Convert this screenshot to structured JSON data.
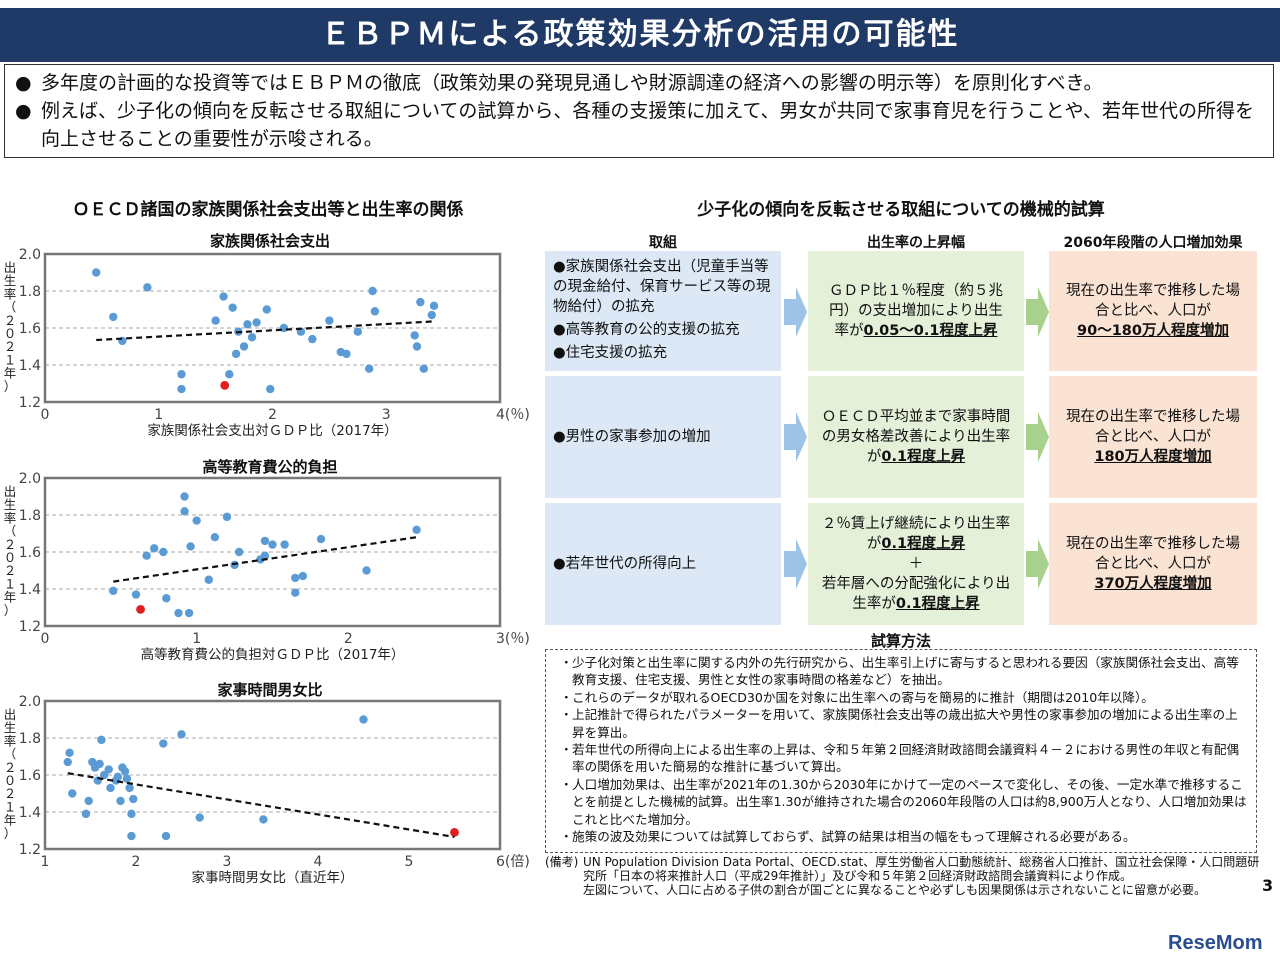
{
  "title": "ＥＢＰＭによる政策効果分析の活用の可能性",
  "summary": [
    "多年度の計画的な投資等ではＥＢＰＭの徹底（政策効果の発現見通しや財源調達の経済への影響の明示等）を原則化すべき。",
    "例えば、少子化の傾向を反転させる取組についての試算から、各種の支援策に加えて、男女が共同で家事育児を行うことや、若年世代の所得を向上させることの重要性が示唆される。"
  ],
  "left": {
    "section_title": "ＯＥＣＤ諸国の家族関係社会支出等と出生率の関係",
    "ylabel": "出生率（２０２１年）",
    "charts": [
      {
        "title": "家族関係社会支出",
        "xlabel": "家族関係社会支出対ＧＤＰ比（2017年）",
        "x_min": 0,
        "x_max": 4,
        "y_min": 1.2,
        "y_max": 2.0,
        "x_ticks": [
          "0",
          "1",
          "2",
          "3",
          "4(％)"
        ],
        "y_ticks": [
          "1.2",
          "1.4",
          "1.6",
          "1.8",
          "2.0"
        ],
        "trend": [
          [
            0.45,
            1.535
          ],
          [
            3.4,
            1.635
          ]
        ],
        "points": [
          [
            0.45,
            1.9
          ],
          [
            0.6,
            1.66
          ],
          [
            0.68,
            1.53
          ],
          [
            0.9,
            1.82
          ],
          [
            1.2,
            1.35
          ],
          [
            1.2,
            1.27
          ],
          [
            1.5,
            1.64
          ],
          [
            1.57,
            1.77
          ],
          [
            1.65,
            1.71
          ],
          [
            1.62,
            1.35
          ],
          [
            1.68,
            1.46
          ],
          [
            1.7,
            1.58
          ],
          [
            1.75,
            1.5
          ],
          [
            1.78,
            1.62
          ],
          [
            1.82,
            1.55
          ],
          [
            1.86,
            1.63
          ],
          [
            1.95,
            1.7
          ],
          [
            1.98,
            1.27
          ],
          [
            2.1,
            1.6
          ],
          [
            2.25,
            1.58
          ],
          [
            2.35,
            1.54
          ],
          [
            2.5,
            1.64
          ],
          [
            2.6,
            1.47
          ],
          [
            2.65,
            1.46
          ],
          [
            2.75,
            1.58
          ],
          [
            2.85,
            1.38
          ],
          [
            2.88,
            1.8
          ],
          [
            2.9,
            1.69
          ],
          [
            3.25,
            1.56
          ],
          [
            3.27,
            1.5
          ],
          [
            3.3,
            1.74
          ],
          [
            3.33,
            1.38
          ],
          [
            3.4,
            1.67
          ],
          [
            3.42,
            1.72
          ]
        ],
        "highlight": [
          1.58,
          1.29
        ]
      },
      {
        "title": "高等教育費公的負担",
        "xlabel": "高等教育費公的負担対ＧＤＰ比（2017年）",
        "x_min": 0,
        "x_max": 3,
        "y_min": 1.2,
        "y_max": 2.0,
        "x_ticks": [
          "0",
          "1",
          "2",
          "3(％)"
        ],
        "y_ticks": [
          "1.2",
          "1.4",
          "1.6",
          "1.8",
          "2.0"
        ],
        "trend": [
          [
            0.45,
            1.44
          ],
          [
            2.45,
            1.68
          ]
        ],
        "points": [
          [
            0.45,
            1.39
          ],
          [
            0.6,
            1.37
          ],
          [
            0.67,
            1.58
          ],
          [
            0.72,
            1.62
          ],
          [
            0.78,
            1.6
          ],
          [
            0.8,
            1.35
          ],
          [
            0.88,
            1.27
          ],
          [
            0.92,
            1.9
          ],
          [
            0.92,
            1.82
          ],
          [
            0.95,
            1.27
          ],
          [
            0.96,
            1.63
          ],
          [
            1.0,
            1.77
          ],
          [
            1.08,
            1.45
          ],
          [
            1.12,
            1.68
          ],
          [
            1.2,
            1.79
          ],
          [
            1.25,
            1.53
          ],
          [
            1.28,
            1.6
          ],
          [
            1.42,
            1.56
          ],
          [
            1.45,
            1.66
          ],
          [
            1.45,
            1.58
          ],
          [
            1.5,
            1.64
          ],
          [
            1.58,
            1.64
          ],
          [
            1.65,
            1.38
          ],
          [
            1.65,
            1.46
          ],
          [
            1.7,
            1.47
          ],
          [
            1.82,
            1.67
          ],
          [
            2.12,
            1.5
          ],
          [
            2.45,
            1.72
          ]
        ],
        "highlight": [
          0.63,
          1.29
        ]
      },
      {
        "title": "家事時間男女比",
        "xlabel": "家事時間男女比（直近年）",
        "x_min": 1,
        "x_max": 6,
        "y_min": 1.2,
        "y_max": 2.0,
        "x_ticks": [
          "1",
          "2",
          "3",
          "4",
          "5",
          "6(倍)"
        ],
        "y_ticks": [
          "1.2",
          "1.4",
          "1.6",
          "1.8",
          "2.0"
        ],
        "trend": [
          [
            1.25,
            1.61
          ],
          [
            5.5,
            1.265
          ]
        ],
        "points": [
          [
            1.25,
            1.67
          ],
          [
            1.27,
            1.72
          ],
          [
            1.3,
            1.5
          ],
          [
            1.45,
            1.39
          ],
          [
            1.48,
            1.46
          ],
          [
            1.52,
            1.67
          ],
          [
            1.55,
            1.64
          ],
          [
            1.58,
            1.57
          ],
          [
            1.6,
            1.66
          ],
          [
            1.62,
            1.79
          ],
          [
            1.65,
            1.6
          ],
          [
            1.7,
            1.63
          ],
          [
            1.72,
            1.53
          ],
          [
            1.78,
            1.57
          ],
          [
            1.8,
            1.59
          ],
          [
            1.83,
            1.46
          ],
          [
            1.85,
            1.64
          ],
          [
            1.88,
            1.62
          ],
          [
            1.9,
            1.58
          ],
          [
            1.93,
            1.53
          ],
          [
            1.95,
            1.39
          ],
          [
            1.95,
            1.27
          ],
          [
            1.97,
            1.47
          ],
          [
            2.3,
            1.77
          ],
          [
            2.33,
            1.27
          ],
          [
            2.5,
            1.82
          ],
          [
            2.7,
            1.37
          ],
          [
            3.4,
            1.36
          ],
          [
            4.5,
            1.9
          ]
        ],
        "highlight": [
          5.5,
          1.29
        ]
      }
    ]
  },
  "right": {
    "section_title": "少子化の傾向を反転させる取組についての機械的試算",
    "headers": [
      "取組",
      "出生率の上昇幅",
      "2060年段階の人口増加効果"
    ],
    "rows": [
      {
        "measures": [
          "家族関係社会支出（児童手当等の現金給付、保育サービス等の現物給付）の拡充",
          "高等教育の公的支援の拡充",
          "住宅支援の拡充"
        ],
        "effect_pre": "ＧＤＰ比１％程度（約５兆円）の支出増加により出生率が",
        "effect_hl": "0.05～0.1程度上昇",
        "pop_pre": "現在の出生率で推移した場合と比べ、人口が",
        "pop_hl": "90～180万人程度増加"
      },
      {
        "measures": [
          "男性の家事参加の増加"
        ],
        "effect_pre": "ＯＥＣＤ平均並まで家事時間の男女格差改善により出生率が",
        "effect_hl": "0.1程度上昇",
        "pop_pre": "現在の出生率で推移した場合と比べ、人口が",
        "pop_hl": "180万人程度増加"
      },
      {
        "measures": [
          "若年世代の所得向上"
        ],
        "effect_a_pre": "２％賃上げ継続により出生率が",
        "effect_a_hl": "0.1程度上昇",
        "effect_plus": "＋",
        "effect_b_pre": "若年層への分配強化により出生率が",
        "effect_b_hl": "0.1程度上昇",
        "pop_pre": "現在の出生率で推移した場合と比べ、人口が",
        "pop_hl": "370万人程度増加"
      }
    ],
    "method_title": "試算方法",
    "method_items": [
      "少子化対策と出生率に関する内外の先行研究から、出生率引上げに寄与すると思われる要因（家族関係社会支出、高等教育支援、住宅支援、男性と女性の家事時間の格差など）を抽出。",
      "これらのデータが取れるOECD30か国を対象に出生率への寄与を簡易的に推計（期間は2010年以降）。",
      "上記推計で得られたパラメーターを用いて、家族関係社会支出等の歳出拡大や男性の家事参加の増加による出生率の上昇を算出。",
      "若年世代の所得向上による出生率の上昇は、令和５年第２回経済財政諮問会議資料４－２における男性の年収と有配偶率の関係を用いた簡易的な推計に基づいて算出。",
      "人口増加効果は、出生率が2021年の1.30から2030年にかけて一定のペースで変化し、その後、一定水準で推移することを前提とした機械的試算。出生率1.30が維持された場合の2060年段階の人口は約8,900万人となり、人口増加効果はこれと比べた増加分。",
      "施策の波及効果については試算しておらず、試算の結果は相当の幅をもって理解される必要がある。"
    ],
    "note_label": "(備考)",
    "note_lines": [
      "UN Population Division Data Portal、OECD.stat、厚生労働省人口動態統計、総務省人口推計、国立社会保障・人口問題研究所「日本の将来推計人口（平成29年推計）」及び令和５年第２回経済財政諮問会議資料により作成。",
      "左図について、人口に占める子供の割合が国ごとに異なることや必ずしも因果関係は示されないことに留意が必要。"
    ]
  },
  "page_number": "3",
  "watermark": "ReseMom",
  "colors": {
    "title_bg": "#1f3a66",
    "point": "#5b9bd5",
    "highlight": "#e02020",
    "blue": "#dce8f5",
    "green": "#e5f0d8",
    "peach": "#fbe3d3",
    "arrow_blue": "#9dc3e6",
    "arrow_green": "#a9d18e"
  }
}
